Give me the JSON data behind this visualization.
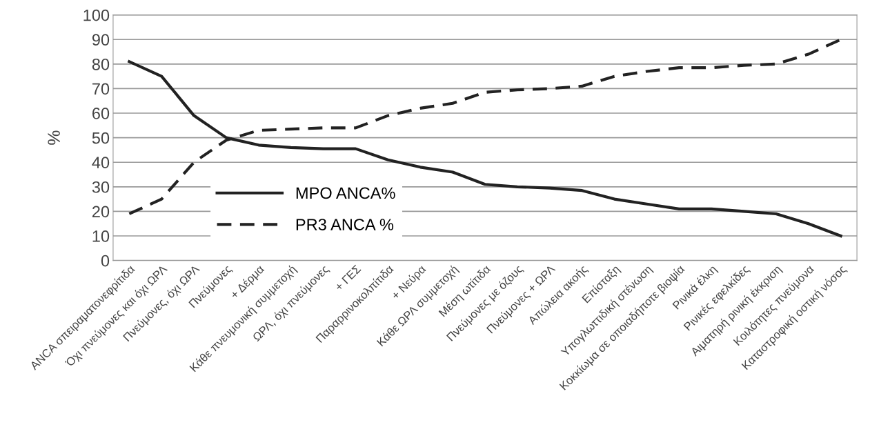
{
  "chart_data": {
    "type": "line",
    "ylabel": "%",
    "categories": [
      "ANCA σπειραματονεφρίτιδα",
      "Όχι πνεύμονες και όχι ΩΡΛ",
      "Πνεύμονες, όχι ΩΡΛ",
      "Πνεύμονες",
      "+ Δέρμα",
      "Κάθε πνευμονική συμμετοχή",
      "ΩΡΛ, όχι πνεύμονες",
      "+ ΓΕΣ",
      "Παραρρινοκολπίτιδα",
      "+ Νεύρα",
      "Κάθε ΩΡΛ συμμετοχή",
      "Μέση ωτίτιδα",
      "Πνεύμονες με όζους",
      "Πνεύμονες + ΩΡΛ",
      "Απώλεια ακοής",
      "Επίσταξη",
      "Υπογλωττιδική στένωση",
      "Κοκκίωμα σε οποιαδήποτε βιοψία",
      "Ρινικά έλκη",
      "Ρινικές εφελκίδες",
      "Αιματηρή ρινική έκκριση",
      "Κοιλότητες πνεύμονα",
      "Καταστροφική οστική νόσος"
    ],
    "series": [
      {
        "name": "MPO ANCA%",
        "color": "#222222",
        "line_style": "solid",
        "values": [
          81,
          75,
          59,
          50,
          47,
          46,
          45.5,
          45.5,
          41,
          38,
          36,
          31,
          30,
          29.5,
          28.5,
          25,
          23,
          21,
          21,
          20,
          19,
          15,
          10
        ]
      },
      {
        "name": "PR3 ANCA %",
        "color": "#222222",
        "line_style": "dashed",
        "values": [
          19,
          25,
          40,
          49,
          53,
          53.5,
          54,
          54,
          59,
          62,
          64,
          68.5,
          69.5,
          70,
          71,
          75,
          77,
          78.5,
          78.5,
          79.5,
          80,
          84,
          90
        ]
      }
    ],
    "ylim": [
      0,
      100
    ],
    "yticks": [
      0,
      10,
      20,
      30,
      40,
      50,
      60,
      70,
      80,
      90,
      100
    ],
    "grid": "y",
    "legend": "lower left",
    "marker": "none"
  }
}
